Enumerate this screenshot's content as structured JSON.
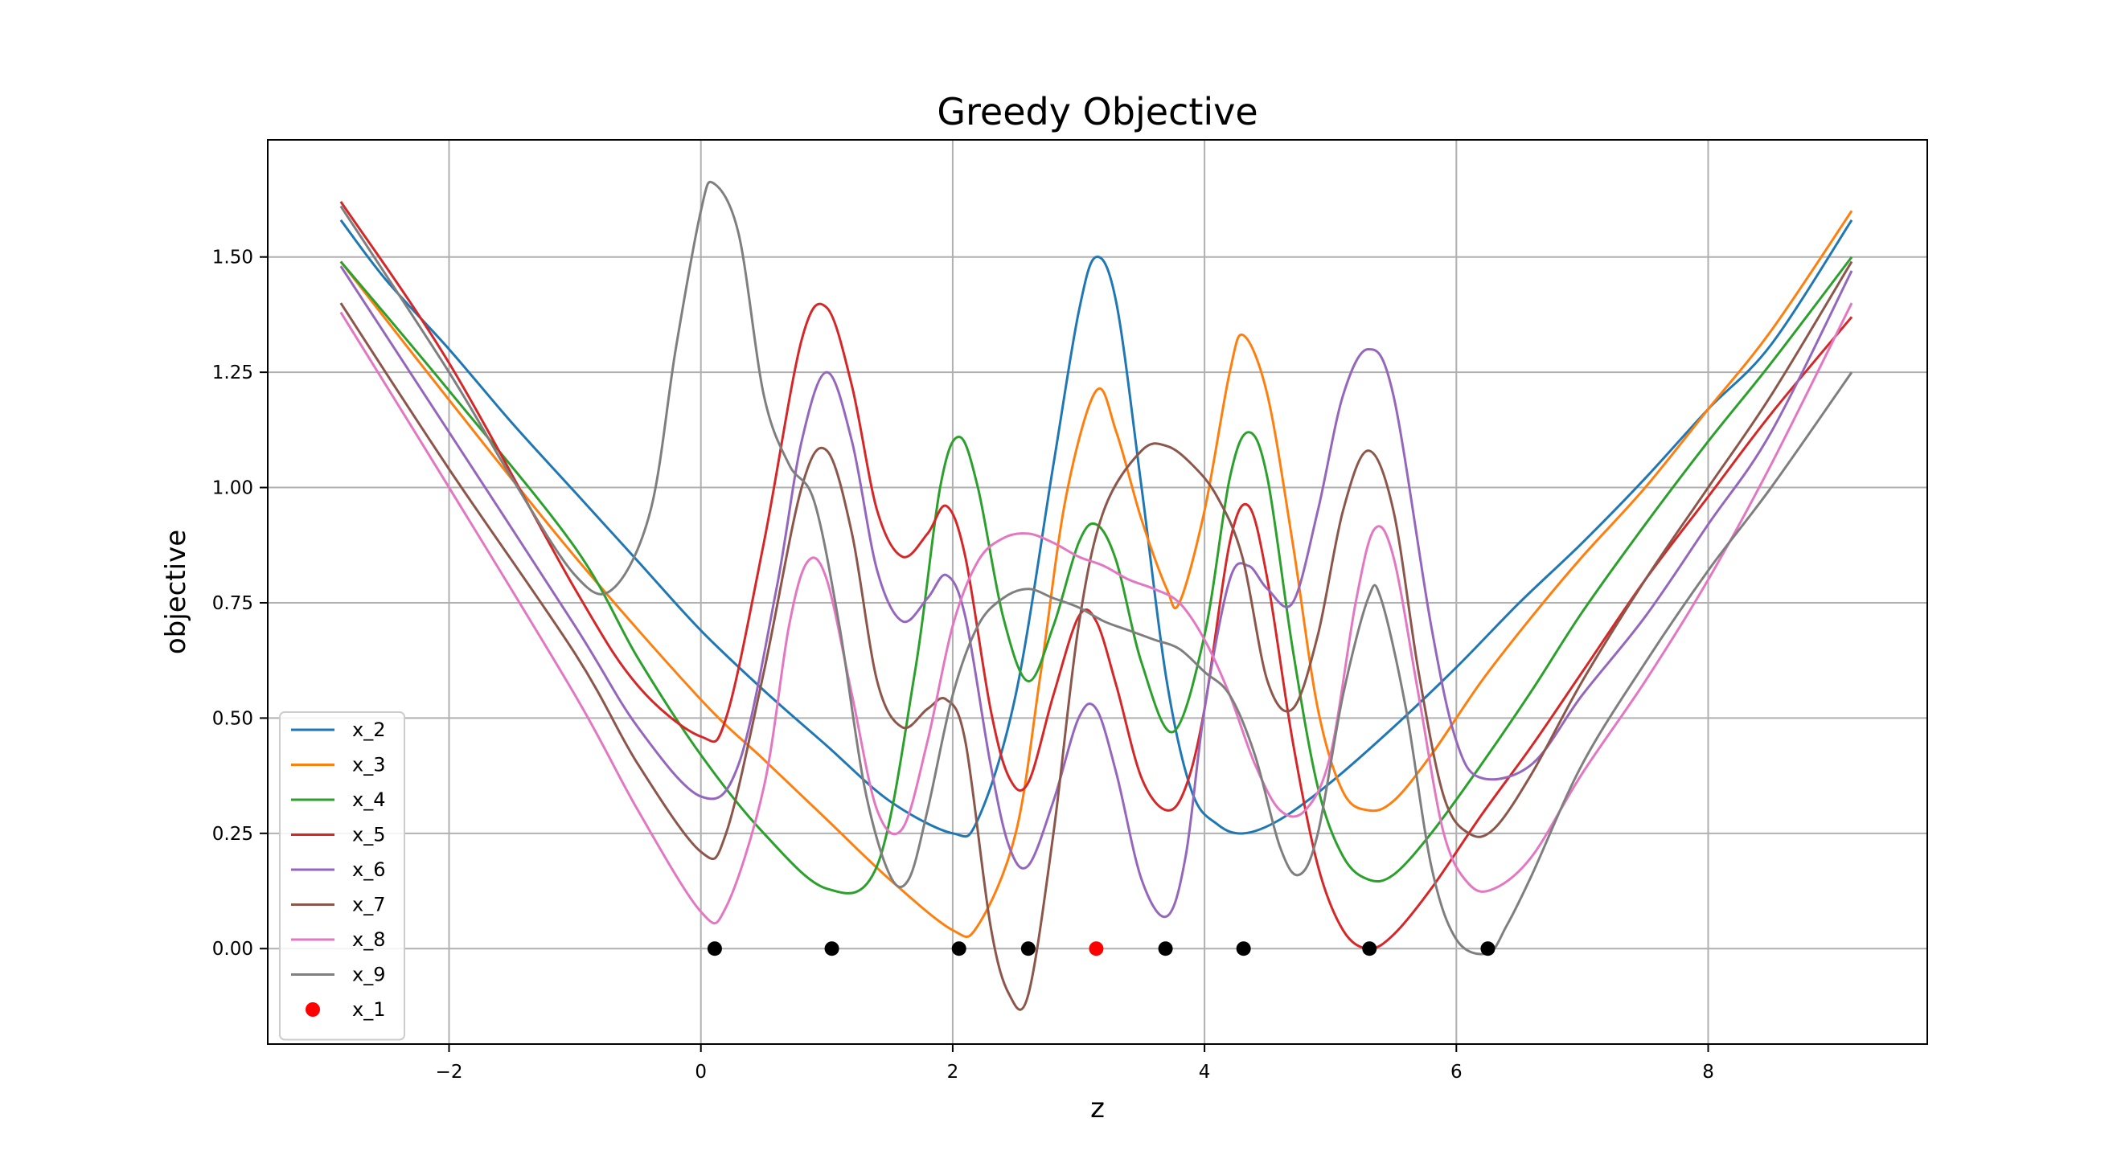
{
  "chart_data": {
    "type": "line",
    "title": "Greedy Objective",
    "xlabel": "z",
    "ylabel": "objective",
    "xlim": [
      -3.44,
      9.74
    ],
    "ylim": [
      -0.207,
      1.754
    ],
    "xticks": [
      -2,
      0,
      2,
      4,
      6,
      8
    ],
    "yticks": [
      0.0,
      0.25,
      0.5,
      0.75,
      1.0,
      1.25,
      1.5
    ],
    "xtick_labels": [
      "−2",
      "0",
      "2",
      "4",
      "6",
      "8"
    ],
    "ytick_labels": [
      "0.00",
      "0.25",
      "0.50",
      "0.75",
      "1.00",
      "1.25",
      "1.50"
    ],
    "grid": true,
    "legend_position": "lower-left",
    "series": [
      {
        "name": "x_2",
        "color": "#1f77b4",
        "x": [
          -2.86,
          -2.5,
          -2.0,
          -1.5,
          -1.0,
          -0.5,
          0.0,
          0.5,
          1.0,
          1.5,
          2.0,
          2.2,
          2.5,
          2.8,
          3.0,
          3.14,
          3.3,
          3.5,
          3.7,
          3.9,
          4.1,
          4.31,
          4.6,
          5.0,
          5.5,
          6.0,
          6.5,
          7.0,
          7.5,
          8.0,
          8.5,
          9.14
        ],
        "y": [
          1.58,
          1.45,
          1.3,
          1.14,
          0.99,
          0.84,
          0.69,
          0.56,
          0.44,
          0.32,
          0.25,
          0.28,
          0.55,
          1.05,
          1.38,
          1.5,
          1.4,
          1.0,
          0.58,
          0.34,
          0.27,
          0.25,
          0.28,
          0.36,
          0.48,
          0.61,
          0.75,
          0.88,
          1.02,
          1.17,
          1.31,
          1.58
        ]
      },
      {
        "name": "x_3",
        "color": "#ff7f0e",
        "x": [
          -2.86,
          -2.0,
          -1.0,
          0.0,
          0.5,
          1.0,
          1.5,
          2.0,
          2.2,
          2.5,
          2.7,
          2.9,
          3.14,
          3.3,
          3.5,
          3.7,
          3.8,
          4.0,
          4.2,
          4.31,
          4.5,
          4.7,
          4.9,
          5.1,
          5.3,
          5.5,
          5.8,
          6.2,
          6.6,
          7.0,
          7.5,
          8.0,
          8.5,
          9.14
        ],
        "y": [
          1.49,
          1.19,
          0.85,
          0.54,
          0.41,
          0.28,
          0.15,
          0.04,
          0.05,
          0.25,
          0.6,
          0.98,
          1.21,
          1.12,
          0.93,
          0.78,
          0.75,
          0.95,
          1.25,
          1.33,
          1.2,
          0.88,
          0.52,
          0.34,
          0.3,
          0.32,
          0.42,
          0.58,
          0.72,
          0.85,
          1.0,
          1.17,
          1.34,
          1.6
        ]
      },
      {
        "name": "x_4",
        "color": "#2ca02c",
        "x": [
          -2.86,
          -2.0,
          -1.0,
          -0.5,
          0.0,
          0.5,
          1.0,
          1.4,
          1.7,
          1.9,
          2.05,
          2.2,
          2.4,
          2.6,
          2.8,
          3.0,
          3.14,
          3.3,
          3.5,
          3.75,
          4.0,
          4.2,
          4.35,
          4.5,
          4.7,
          4.9,
          5.1,
          5.3,
          5.5,
          5.8,
          6.2,
          6.6,
          7.0,
          7.5,
          8.0,
          8.5,
          9.14
        ],
        "y": [
          1.49,
          1.21,
          0.87,
          0.63,
          0.42,
          0.25,
          0.13,
          0.18,
          0.6,
          1.0,
          1.11,
          1.0,
          0.72,
          0.58,
          0.7,
          0.88,
          0.92,
          0.84,
          0.62,
          0.47,
          0.68,
          1.02,
          1.12,
          1.02,
          0.65,
          0.35,
          0.2,
          0.15,
          0.16,
          0.25,
          0.4,
          0.56,
          0.73,
          0.92,
          1.1,
          1.27,
          1.5
        ]
      },
      {
        "name": "x_5",
        "color": "#d62728",
        "x": [
          -2.86,
          -2.0,
          -1.0,
          -0.5,
          0.0,
          0.2,
          0.5,
          0.8,
          1.0,
          1.2,
          1.4,
          1.6,
          1.8,
          1.95,
          2.1,
          2.3,
          2.45,
          2.6,
          2.8,
          3.0,
          3.14,
          3.3,
          3.5,
          3.7,
          3.85,
          4.0,
          4.2,
          4.35,
          4.5,
          4.7,
          4.9,
          5.1,
          5.3,
          5.5,
          5.8,
          6.2,
          6.6,
          7.0,
          7.5,
          8.0,
          8.5,
          9.14
        ],
        "y": [
          1.62,
          1.27,
          0.78,
          0.57,
          0.46,
          0.5,
          0.88,
          1.32,
          1.39,
          1.22,
          0.95,
          0.85,
          0.9,
          0.96,
          0.85,
          0.52,
          0.37,
          0.36,
          0.55,
          0.72,
          0.71,
          0.57,
          0.37,
          0.3,
          0.35,
          0.52,
          0.88,
          0.96,
          0.8,
          0.45,
          0.18,
          0.04,
          0.0,
          0.03,
          0.13,
          0.29,
          0.44,
          0.6,
          0.8,
          0.98,
          1.16,
          1.37
        ]
      },
      {
        "name": "x_6",
        "color": "#9467bd",
        "x": [
          -2.86,
          -2.0,
          -1.0,
          -0.5,
          0.0,
          0.3,
          0.6,
          0.8,
          1.0,
          1.2,
          1.4,
          1.6,
          1.8,
          1.95,
          2.1,
          2.3,
          2.45,
          2.6,
          2.8,
          3.0,
          3.14,
          3.3,
          3.5,
          3.7,
          3.85,
          4.0,
          4.2,
          4.35,
          4.5,
          4.7,
          4.9,
          5.1,
          5.3,
          5.5,
          5.8,
          6.0,
          6.2,
          6.6,
          7.0,
          7.5,
          8.0,
          8.5,
          9.14
        ],
        "y": [
          1.48,
          1.12,
          0.7,
          0.48,
          0.33,
          0.4,
          0.78,
          1.1,
          1.25,
          1.1,
          0.82,
          0.71,
          0.76,
          0.81,
          0.72,
          0.4,
          0.22,
          0.18,
          0.32,
          0.5,
          0.52,
          0.38,
          0.15,
          0.07,
          0.2,
          0.52,
          0.8,
          0.83,
          0.78,
          0.75,
          0.95,
          1.2,
          1.3,
          1.2,
          0.7,
          0.45,
          0.37,
          0.4,
          0.55,
          0.72,
          0.92,
          1.12,
          1.47
        ]
      },
      {
        "name": "x_7",
        "color": "#8c564b",
        "x": [
          -2.86,
          -2.0,
          -1.0,
          -0.5,
          0.0,
          0.2,
          0.5,
          0.8,
          1.0,
          1.2,
          1.4,
          1.6,
          1.8,
          1.95,
          2.1,
          2.3,
          2.45,
          2.6,
          2.8,
          3.0,
          3.2,
          3.5,
          3.7,
          3.9,
          4.1,
          4.3,
          4.5,
          4.7,
          4.9,
          5.1,
          5.3,
          5.5,
          5.7,
          5.9,
          6.1,
          6.3,
          6.6,
          7.0,
          7.5,
          8.0,
          8.5,
          9.14
        ],
        "y": [
          1.4,
          1.04,
          0.64,
          0.4,
          0.21,
          0.25,
          0.6,
          1.0,
          1.08,
          0.9,
          0.58,
          0.48,
          0.52,
          0.54,
          0.45,
          0.05,
          -0.1,
          -0.1,
          0.25,
          0.7,
          0.95,
          1.08,
          1.09,
          1.05,
          0.98,
          0.85,
          0.58,
          0.52,
          0.68,
          0.95,
          1.08,
          0.95,
          0.6,
          0.33,
          0.25,
          0.26,
          0.38,
          0.58,
          0.8,
          1.0,
          1.2,
          1.49
        ]
      },
      {
        "name": "x_8",
        "color": "#e377c2",
        "x": [
          -2.86,
          -2.0,
          -1.0,
          -0.5,
          0.0,
          0.2,
          0.5,
          0.7,
          0.85,
          1.0,
          1.2,
          1.4,
          1.6,
          1.8,
          2.0,
          2.2,
          2.4,
          2.6,
          2.8,
          3.0,
          3.2,
          3.4,
          3.6,
          3.8,
          4.0,
          4.2,
          4.4,
          4.6,
          4.8,
          5.0,
          5.2,
          5.35,
          5.5,
          5.7,
          5.9,
          6.1,
          6.3,
          6.6,
          7.0,
          7.5,
          8.0,
          8.5,
          9.14
        ],
        "y": [
          1.38,
          1.0,
          0.55,
          0.3,
          0.08,
          0.09,
          0.35,
          0.7,
          0.84,
          0.8,
          0.55,
          0.3,
          0.26,
          0.45,
          0.7,
          0.84,
          0.89,
          0.9,
          0.88,
          0.85,
          0.83,
          0.8,
          0.78,
          0.75,
          0.67,
          0.55,
          0.4,
          0.3,
          0.3,
          0.42,
          0.75,
          0.91,
          0.85,
          0.55,
          0.25,
          0.14,
          0.13,
          0.2,
          0.38,
          0.58,
          0.8,
          1.05,
          1.4
        ]
      },
      {
        "name": "x_9",
        "color": "#7f7f7f",
        "x": [
          -2.86,
          -2.0,
          -1.5,
          -1.0,
          -0.7,
          -0.4,
          -0.2,
          0.0,
          0.1,
          0.3,
          0.5,
          0.7,
          0.9,
          1.1,
          1.3,
          1.5,
          1.65,
          1.8,
          2.0,
          2.2,
          2.4,
          2.6,
          2.8,
          3.0,
          3.2,
          3.4,
          3.6,
          3.8,
          4.0,
          4.2,
          4.4,
          4.6,
          4.75,
          4.9,
          5.1,
          5.3,
          5.4,
          5.6,
          5.8,
          6.0,
          6.25,
          6.4,
          6.6,
          7.0,
          7.5,
          8.0,
          8.5,
          9.14
        ],
        "y": [
          1.61,
          1.25,
          1.02,
          0.81,
          0.78,
          0.95,
          1.3,
          1.6,
          1.66,
          1.55,
          1.2,
          1.05,
          0.97,
          0.7,
          0.35,
          0.16,
          0.15,
          0.3,
          0.55,
          0.7,
          0.76,
          0.78,
          0.76,
          0.74,
          0.71,
          0.69,
          0.67,
          0.65,
          0.6,
          0.55,
          0.42,
          0.22,
          0.16,
          0.25,
          0.55,
          0.76,
          0.76,
          0.52,
          0.18,
          0.02,
          -0.01,
          0.05,
          0.16,
          0.4,
          0.62,
          0.82,
          1.0,
          1.25
        ]
      }
    ],
    "scatter_series": [
      {
        "name": "",
        "color": "#000000",
        "x": [
          0.11,
          1.04,
          2.05,
          2.6,
          3.69,
          4.31,
          5.31,
          6.25
        ],
        "y": [
          0,
          0,
          0,
          0,
          0,
          0,
          0,
          0
        ]
      },
      {
        "name": "x_1",
        "color": "#ff0000",
        "x": [
          3.14
        ],
        "y": [
          0
        ]
      }
    ]
  }
}
